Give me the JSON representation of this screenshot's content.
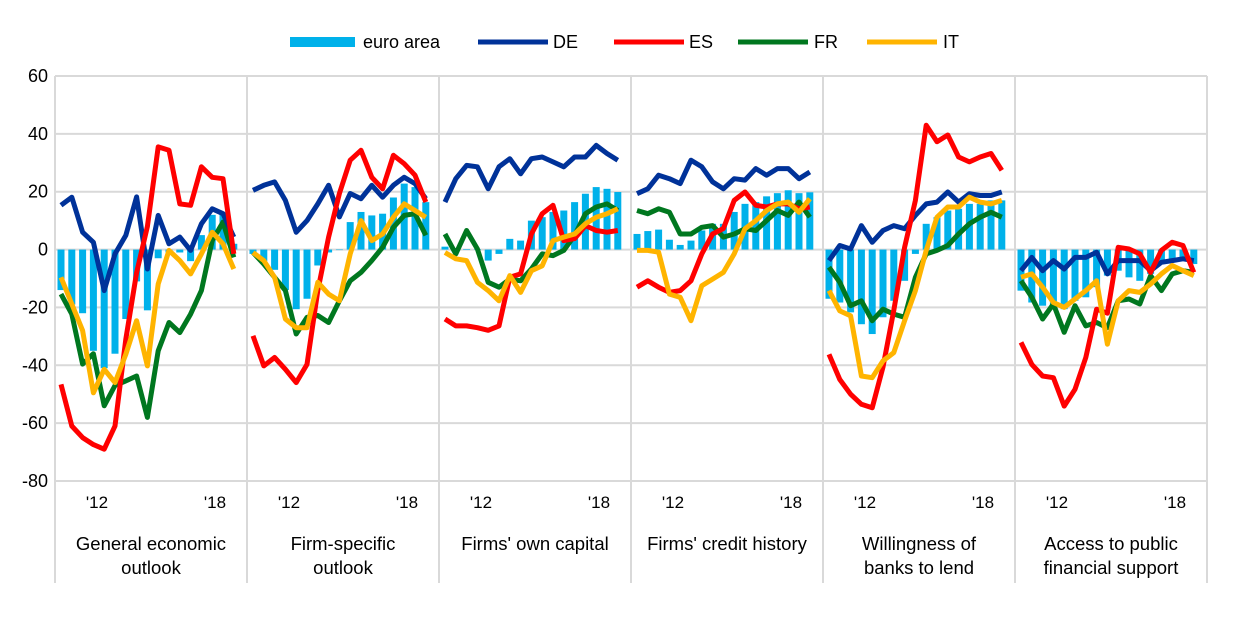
{
  "chart_data": {
    "type": "bar+line",
    "ylim": [
      -80,
      60
    ],
    "yticks": [
      60,
      40,
      20,
      0,
      -20,
      -40,
      -60,
      -80
    ],
    "ytick_labels": [
      "60",
      "40",
      "20",
      "0",
      "-20",
      "-40",
      "-60",
      "-80"
    ],
    "grid": true,
    "legend_position": "top-center",
    "legend": [
      {
        "key": "EA",
        "label": "euro area",
        "kind": "bar",
        "color": "#00B1EA"
      },
      {
        "key": "DE",
        "label": "DE",
        "kind": "line",
        "color": "#003299"
      },
      {
        "key": "ES",
        "label": "ES",
        "kind": "line",
        "color": "#FF0000"
      },
      {
        "key": "FR",
        "label": "FR",
        "kind": "line",
        "color": "#00771F"
      },
      {
        "key": "IT",
        "label": "IT",
        "kind": "line",
        "color": "#FFB400"
      }
    ],
    "x_tick_labels": [
      "'12",
      "'18"
    ],
    "panels": [
      {
        "title_lines": [
          "General economic",
          "outlook"
        ],
        "EA": [
          -14,
          -19,
          -22,
          -35,
          -41,
          -36,
          -24,
          -11,
          -21,
          -3,
          -1,
          -1,
          -4,
          5,
          12,
          13,
          2
        ],
        "DE": [
          15.3,
          18.1,
          6,
          2.5,
          -14.2,
          -1.5,
          4.9,
          18.2,
          -6.7,
          11.8,
          2,
          4.3,
          -0.3,
          8.9,
          14.1,
          12.4,
          4.3
        ],
        "ES": [
          -46.6,
          -61,
          -65,
          -67.4,
          -69,
          -61,
          -31,
          -8,
          8,
          35.5,
          34.3,
          15.8,
          15.3,
          28.6,
          25,
          24.5,
          -1.5
        ],
        "FR": [
          -15.4,
          -22.3,
          -39.6,
          -36,
          -54,
          -47,
          -45.4,
          -43.7,
          -58,
          -35,
          -25.2,
          -28.7,
          -22.3,
          -14.2,
          3.1,
          9.5,
          -2.7
        ],
        "IT": [
          -9.6,
          -18.8,
          -28,
          -49.5,
          -41.4,
          -46,
          -36.2,
          -24.6,
          -40.2,
          -11.9,
          -0.3,
          -3.8,
          -8.4,
          -1.5,
          6,
          2,
          -6.7
        ]
      },
      {
        "title_lines": [
          "Firm-specific",
          "outlook"
        ],
        "EA": [
          -1.5,
          -4,
          -7,
          -14,
          -20.6,
          -17,
          -5.5,
          -1,
          0,
          9.5,
          13,
          11.8,
          12.4,
          18,
          22.8,
          21.6,
          16.4
        ],
        "DE": [
          20.5,
          22.2,
          23.4,
          17,
          6,
          10,
          15.8,
          22.2,
          11.3,
          19.4,
          17.6,
          22.2,
          18.1,
          22.2,
          25,
          22.8,
          17.6
        ],
        "ES": [
          -29.8,
          -40.2,
          -37.3,
          -41.4,
          -46,
          -39.7,
          -14.2,
          4.3,
          19.4,
          30.9,
          34.3,
          25,
          21,
          32.6,
          29.7,
          25.7,
          16.4
        ],
        "FR": [
          -1,
          -5,
          -9.6,
          -14.2,
          -29.2,
          -23.4,
          -22.8,
          -25.2,
          -17.7,
          -10.8,
          -7.9,
          -3.8,
          0.8,
          7.7,
          11.8,
          12.4,
          4.9
        ],
        "IT": [
          -1,
          -3.8,
          -9.6,
          -24,
          -27,
          -27,
          -11.3,
          -15.4,
          -17.7,
          -1.5,
          10,
          3.1,
          5.4,
          11.2,
          15.8,
          13.5,
          11.2
        ]
      },
      {
        "title_lines": [
          "Firms' own capital"
        ],
        "EA": [
          1,
          0.5,
          0.2,
          0.2,
          -3.8,
          -1.5,
          3.7,
          3.1,
          10,
          11.2,
          13,
          13.5,
          16.4,
          19.3,
          21.6,
          21,
          19.9
        ],
        "DE": [
          16.4,
          24.5,
          29.1,
          28.6,
          21,
          28.6,
          31.4,
          26.2,
          31.4,
          32,
          30.3,
          28.6,
          32,
          32,
          36,
          33.2,
          30.9
        ],
        "ES": [
          -24,
          -26.4,
          -26.4,
          -27,
          -27.9,
          -26.4,
          -9.6,
          -8.4,
          5.4,
          12.4,
          15.3,
          3.1,
          3.8,
          8.3,
          6.6,
          6,
          6.6
        ],
        "FR": [
          5.4,
          -1.5,
          6.6,
          0.2,
          -11.3,
          -13,
          -10.2,
          -10.8,
          -6.7,
          -1.5,
          -2.1,
          -0.3,
          4.9,
          12.4,
          14.7,
          15.8,
          13.5
        ],
        "IT": [
          -1,
          -3.2,
          -3.8,
          -11.3,
          -14.2,
          -17.7,
          -9,
          -14.8,
          -7.3,
          -5.6,
          3.1,
          4.3,
          5.4,
          8.9,
          11.2,
          12.4,
          14.1
        ]
      },
      {
        "title_lines": [
          "Firms' credit history"
        ],
        "EA": [
          5.4,
          6.4,
          6.9,
          3.4,
          1.6,
          3.1,
          6.6,
          8.9,
          8.9,
          13,
          15.8,
          16.4,
          18.4,
          19.5,
          20.5,
          19.5,
          19.8
        ],
        "DE": [
          19.3,
          21,
          25.7,
          24.5,
          22.8,
          30.9,
          28.6,
          23.4,
          21,
          24.5,
          24,
          28,
          25.7,
          28,
          28,
          24.5,
          26.8
        ],
        "ES": [
          -13,
          -10.8,
          -13,
          -14.8,
          -14.2,
          -10.8,
          -1.5,
          5.4,
          7.3,
          17,
          19.9,
          15.3,
          14.7,
          15.8,
          15.8,
          14.1,
          14.7
        ],
        "FR": [
          13.5,
          12.4,
          14.1,
          12.9,
          5.4,
          5.4,
          7.7,
          8.3,
          4.3,
          5.4,
          7.2,
          6.6,
          10,
          13.5,
          11.8,
          16.4,
          11.2
        ],
        "IT": [
          -0.3,
          -0.3,
          -0.9,
          -15.4,
          -16.5,
          -24.6,
          -12.5,
          -10.2,
          -7.9,
          -1.5,
          7.2,
          10,
          13.5,
          15.8,
          16.4,
          12.9,
          17.6
        ]
      },
      {
        "title_lines": [
          "Willingness of",
          "banks to lend"
        ],
        "EA": [
          -17,
          -18.3,
          -21.7,
          -25.8,
          -29.2,
          -23.4,
          -17.7,
          -10.8,
          -1.5,
          8.9,
          11.2,
          13.5,
          14.1,
          15.8,
          15.8,
          17,
          17
        ],
        "DE": [
          -3.8,
          1.4,
          0.2,
          8.3,
          2.5,
          6.6,
          8.3,
          7.2,
          11.8,
          15.8,
          16.4,
          19.9,
          16.4,
          19.3,
          18.7,
          18.7,
          19.9
        ],
        "ES": [
          -36.2,
          -44.9,
          -50,
          -53.5,
          -54.7,
          -40.6,
          -21,
          0.8,
          17,
          43,
          37.3,
          39.6,
          32,
          30.3,
          32,
          33.2,
          27.4
        ],
        "FR": [
          -6.1,
          -11.3,
          -19.4,
          -17.7,
          -24.6,
          -20.6,
          -22.3,
          -23.4,
          -9.6,
          -1.5,
          -0.3,
          1.4,
          5.4,
          8.9,
          11.2,
          12.9,
          11.2
        ],
        "IT": [
          -14.2,
          -21.2,
          -22.9,
          -43.7,
          -44.3,
          -38.5,
          -35.6,
          -24.6,
          -14.2,
          -0.3,
          11.2,
          14.7,
          14.7,
          18.1,
          16.4,
          15.8,
          17
        ]
      },
      {
        "title_lines": [
          "Access to public",
          "financial support"
        ],
        "EA": [
          -14.2,
          -18.3,
          -19.4,
          -20,
          -20.6,
          -17.7,
          -16.5,
          -13,
          -9,
          -7.3,
          -9.6,
          -10.8,
          -8.4,
          -4.4,
          -3.2,
          -3.8,
          -5
        ],
        "DE": [
          -7.3,
          -2.7,
          -7.3,
          -3.8,
          -6.7,
          -2.7,
          -2.7,
          -0.9,
          -8.4,
          -3.8,
          -3.8,
          -3.8,
          -7.3,
          -4.4,
          -3.8,
          -3.2,
          -3.8
        ],
        "ES": [
          -32.1,
          -39.7,
          -43.7,
          -44.3,
          -54.1,
          -48.3,
          -37.3,
          -20.6,
          -22,
          0.8,
          0.2,
          -1.5,
          -7.9,
          -0.3,
          2.5,
          1.4,
          -7.9
        ],
        "FR": [
          -10.8,
          -16.5,
          -24,
          -18.8,
          -28.6,
          -19.4,
          -26.4,
          -25.2,
          -27,
          -17.7,
          -17.1,
          -18.8,
          -9,
          -14.2,
          -8.4,
          -7.3,
          -7.9
        ],
        "IT": [
          -9.6,
          -8.4,
          -13,
          -18.3,
          -20,
          -17.1,
          -14.2,
          -10.8,
          -32.7,
          -17.7,
          -14.2,
          -14.8,
          -11.9,
          -8.4,
          -5.5,
          -7.3,
          -9
        ]
      }
    ]
  }
}
